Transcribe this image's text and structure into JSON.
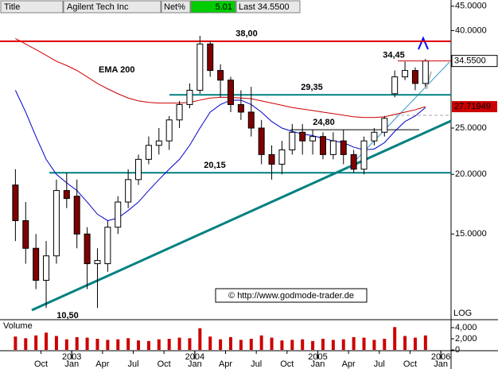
{
  "header": {
    "title_label": "Title",
    "name": "Agilent Tech Inc",
    "net_label": "Net%",
    "net": "5.01",
    "last": "Last 34.5500"
  },
  "chart_data": {
    "type": "candlestick",
    "x": [
      "2002-07",
      "2002-08",
      "2002-09",
      "2002-10",
      "2002-11",
      "2002-12",
      "2003-01",
      "2003-02",
      "2003-03",
      "2003-04",
      "2003-05",
      "2003-06",
      "2003-07",
      "2003-08",
      "2003-09",
      "2003-10",
      "2003-11",
      "2003-12",
      "2004-01",
      "2004-02",
      "2004-03",
      "2004-04",
      "2004-05",
      "2004-06",
      "2004-07",
      "2004-08",
      "2004-09",
      "2004-10",
      "2004-11",
      "2004-12",
      "2005-01",
      "2005-02",
      "2005-03",
      "2005-04",
      "2005-05",
      "2005-06",
      "2005-07",
      "2005-08",
      "2005-09",
      "2005-10",
      "2005-11"
    ],
    "open": [
      19,
      16,
      14,
      12,
      13.5,
      18.5,
      18,
      15,
      13,
      13,
      15.5,
      17.5,
      19.5,
      21.5,
      23,
      23.5,
      26,
      28,
      30,
      37.5,
      33,
      31.5,
      28,
      27,
      25,
      22,
      21,
      22.5,
      24.5,
      23.5,
      24,
      22,
      23.5,
      22,
      20.5,
      23.5,
      24.5,
      29.5,
      32,
      33,
      31
    ],
    "high": [
      20.5,
      17.5,
      15,
      14.5,
      19.5,
      20.15,
      19.5,
      15.5,
      14,
      16,
      18,
      20.5,
      22,
      24,
      25,
      26.5,
      28.5,
      31,
      39,
      38,
      34,
      32,
      30,
      30.5,
      26,
      23,
      23.5,
      25.5,
      25.5,
      24.8,
      24.5,
      24.5,
      24.8,
      22.5,
      24,
      25,
      26.5,
      33,
      34.45,
      33.5,
      34.9
    ],
    "low": [
      14.5,
      13,
      11.5,
      10.5,
      13,
      17,
      14,
      11.5,
      10.5,
      12.5,
      15,
      17,
      19,
      21,
      22,
      22.5,
      25,
      27.5,
      29.5,
      32,
      29,
      27,
      26,
      24,
      21,
      19.5,
      20,
      22,
      22,
      22,
      21.5,
      21.5,
      21,
      20.15,
      20,
      23,
      24,
      29,
      31.5,
      30,
      30.5
    ],
    "close": [
      16,
      14,
      12,
      13.5,
      18.5,
      17.8,
      15,
      13,
      13.2,
      15.5,
      17.5,
      19.5,
      21.5,
      23,
      23.5,
      26,
      28,
      30,
      37.5,
      33,
      31.5,
      28,
      27,
      25,
      22,
      21,
      22.5,
      24.5,
      23.5,
      24,
      22,
      23.5,
      22,
      20.5,
      23.5,
      24.5,
      26.2,
      32,
      33,
      31,
      34.55
    ],
    "last_label": "34.5500",
    "up_color": "#ffffff",
    "down_color": "#800000",
    "ylim": [
      10,
      46
    ],
    "log_scale": true,
    "scale_label": "LOG",
    "yticks": [
      {
        "value": 15,
        "label": "15.0000"
      },
      {
        "value": 20,
        "label": "20.0000"
      },
      {
        "value": 25,
        "label": "25.0000"
      },
      {
        "value": 40,
        "label": "40.0000"
      },
      {
        "value": 45,
        "label": "45.0000"
      }
    ],
    "xlim": [
      "2002-06",
      "2006-02"
    ],
    "xticks": [
      {
        "value": "2002-10",
        "label": "Oct"
      },
      {
        "value": "2003-01",
        "label": "Jan"
      },
      {
        "value": "2003-04",
        "label": "Apr"
      },
      {
        "value": "2003-07",
        "label": "Jul"
      },
      {
        "value": "2003-10",
        "label": "Oct"
      },
      {
        "value": "2004-01",
        "label": "Jan"
      },
      {
        "value": "2004-04",
        "label": "Apr"
      },
      {
        "value": "2004-07",
        "label": "Jul"
      },
      {
        "value": "2004-10",
        "label": "Oct"
      },
      {
        "value": "2005-01",
        "label": "Jan"
      },
      {
        "value": "2005-04",
        "label": "Apr"
      },
      {
        "value": "2005-07",
        "label": "Jul"
      },
      {
        "value": "2005-10",
        "label": "Oct"
      },
      {
        "value": "2006-01",
        "label": "Jan"
      }
    ],
    "year_ticks": [
      {
        "value": "2003-01",
        "label": "2003"
      },
      {
        "value": "2004-01",
        "label": "2004"
      },
      {
        "value": "2005-01",
        "label": "2005"
      },
      {
        "value": "2006-01",
        "label": "2006"
      }
    ],
    "series": [
      {
        "name": "EMA 200",
        "color": "#cc0000",
        "last_label": "27.71949",
        "values": [
          38.5,
          37.5,
          36.5,
          35.5,
          34.5,
          33.8,
          33,
          32,
          31,
          30.2,
          29.5,
          28.9,
          28.5,
          28.3,
          28.2,
          28.2,
          28.2,
          28.3,
          28.6,
          28.9,
          29,
          29,
          28.9,
          28.8,
          28.5,
          28.2,
          27.9,
          27.6,
          27.4,
          27.2,
          27,
          26.8,
          26.6,
          26.4,
          26.3,
          26.3,
          26.4,
          26.7,
          27,
          27.3,
          27.71949
        ]
      },
      {
        "color": "#0000cc",
        "values": [
          30,
          27,
          24,
          21.5,
          20,
          19.2,
          18.5,
          17.5,
          16.5,
          16,
          16.2,
          16.8,
          17.5,
          18.5,
          19.5,
          20.5,
          21.5,
          23,
          25,
          27,
          28,
          28.6,
          28.6,
          28,
          27,
          25.8,
          25,
          24.6,
          24.3,
          24.1,
          23.8,
          23.5,
          23.3,
          22.8,
          22.5,
          22.6,
          23.3,
          24.6,
          25.8,
          26.5,
          27.6
        ]
      }
    ],
    "levels": [
      {
        "value": 38,
        "label": "38,00",
        "color": "#dd0000"
      },
      {
        "value": 29.35,
        "label": "29,35",
        "color": "#008080"
      },
      {
        "value": 24.8,
        "label": "24,80",
        "color": "#000000"
      },
      {
        "value": 20.15,
        "label": "20,15",
        "color": "#008080"
      }
    ],
    "annotations": [
      {
        "value": 34.45,
        "label": "34,45"
      },
      {
        "value": 10.5,
        "label": "10,50"
      }
    ],
    "credit": "© http://www.godmode-trader.de",
    "volume": {
      "title": "Volume",
      "color": "#cc0000",
      "values": [
        2400,
        2100,
        2600,
        3100,
        2500,
        1900,
        2300,
        2200,
        2000,
        1800,
        1900,
        2100,
        1700,
        1600,
        1900,
        2000,
        2200,
        2100,
        3900,
        2400,
        1900,
        2300,
        1800,
        2000,
        2600,
        2200,
        1700,
        1800,
        1900,
        1600,
        2000,
        1800,
        1900,
        2300,
        2200,
        1800,
        2000,
        4100,
        2500,
        2200,
        2600
      ],
      "ylim": [
        0,
        5000
      ],
      "yticks": [
        {
          "value": 4000,
          "label": "4,000"
        },
        {
          "value": 2000,
          "label": "2,000"
        },
        {
          "value": 0,
          "label": "0"
        }
      ]
    }
  }
}
